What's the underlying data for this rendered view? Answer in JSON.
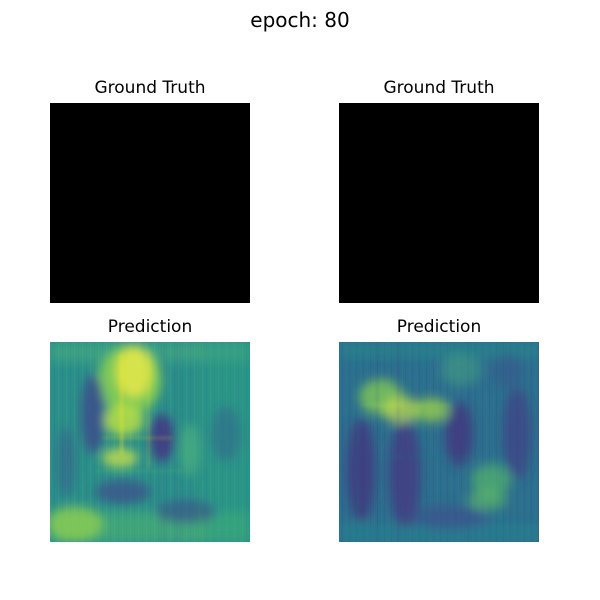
{
  "figure": {
    "title": "epoch: 80"
  },
  "panels": [
    {
      "title": "Ground Truth",
      "fill": "#000000"
    },
    {
      "title": "Ground Truth",
      "fill": "#000000"
    },
    {
      "title": "Prediction"
    },
    {
      "title": "Prediction"
    }
  ],
  "colors": {
    "viridis_dark": "#440154",
    "viridis_blue": "#3b528b",
    "viridis_teal": "#21918c",
    "viridis_green": "#5ec962",
    "viridis_yellow": "#fde725"
  }
}
